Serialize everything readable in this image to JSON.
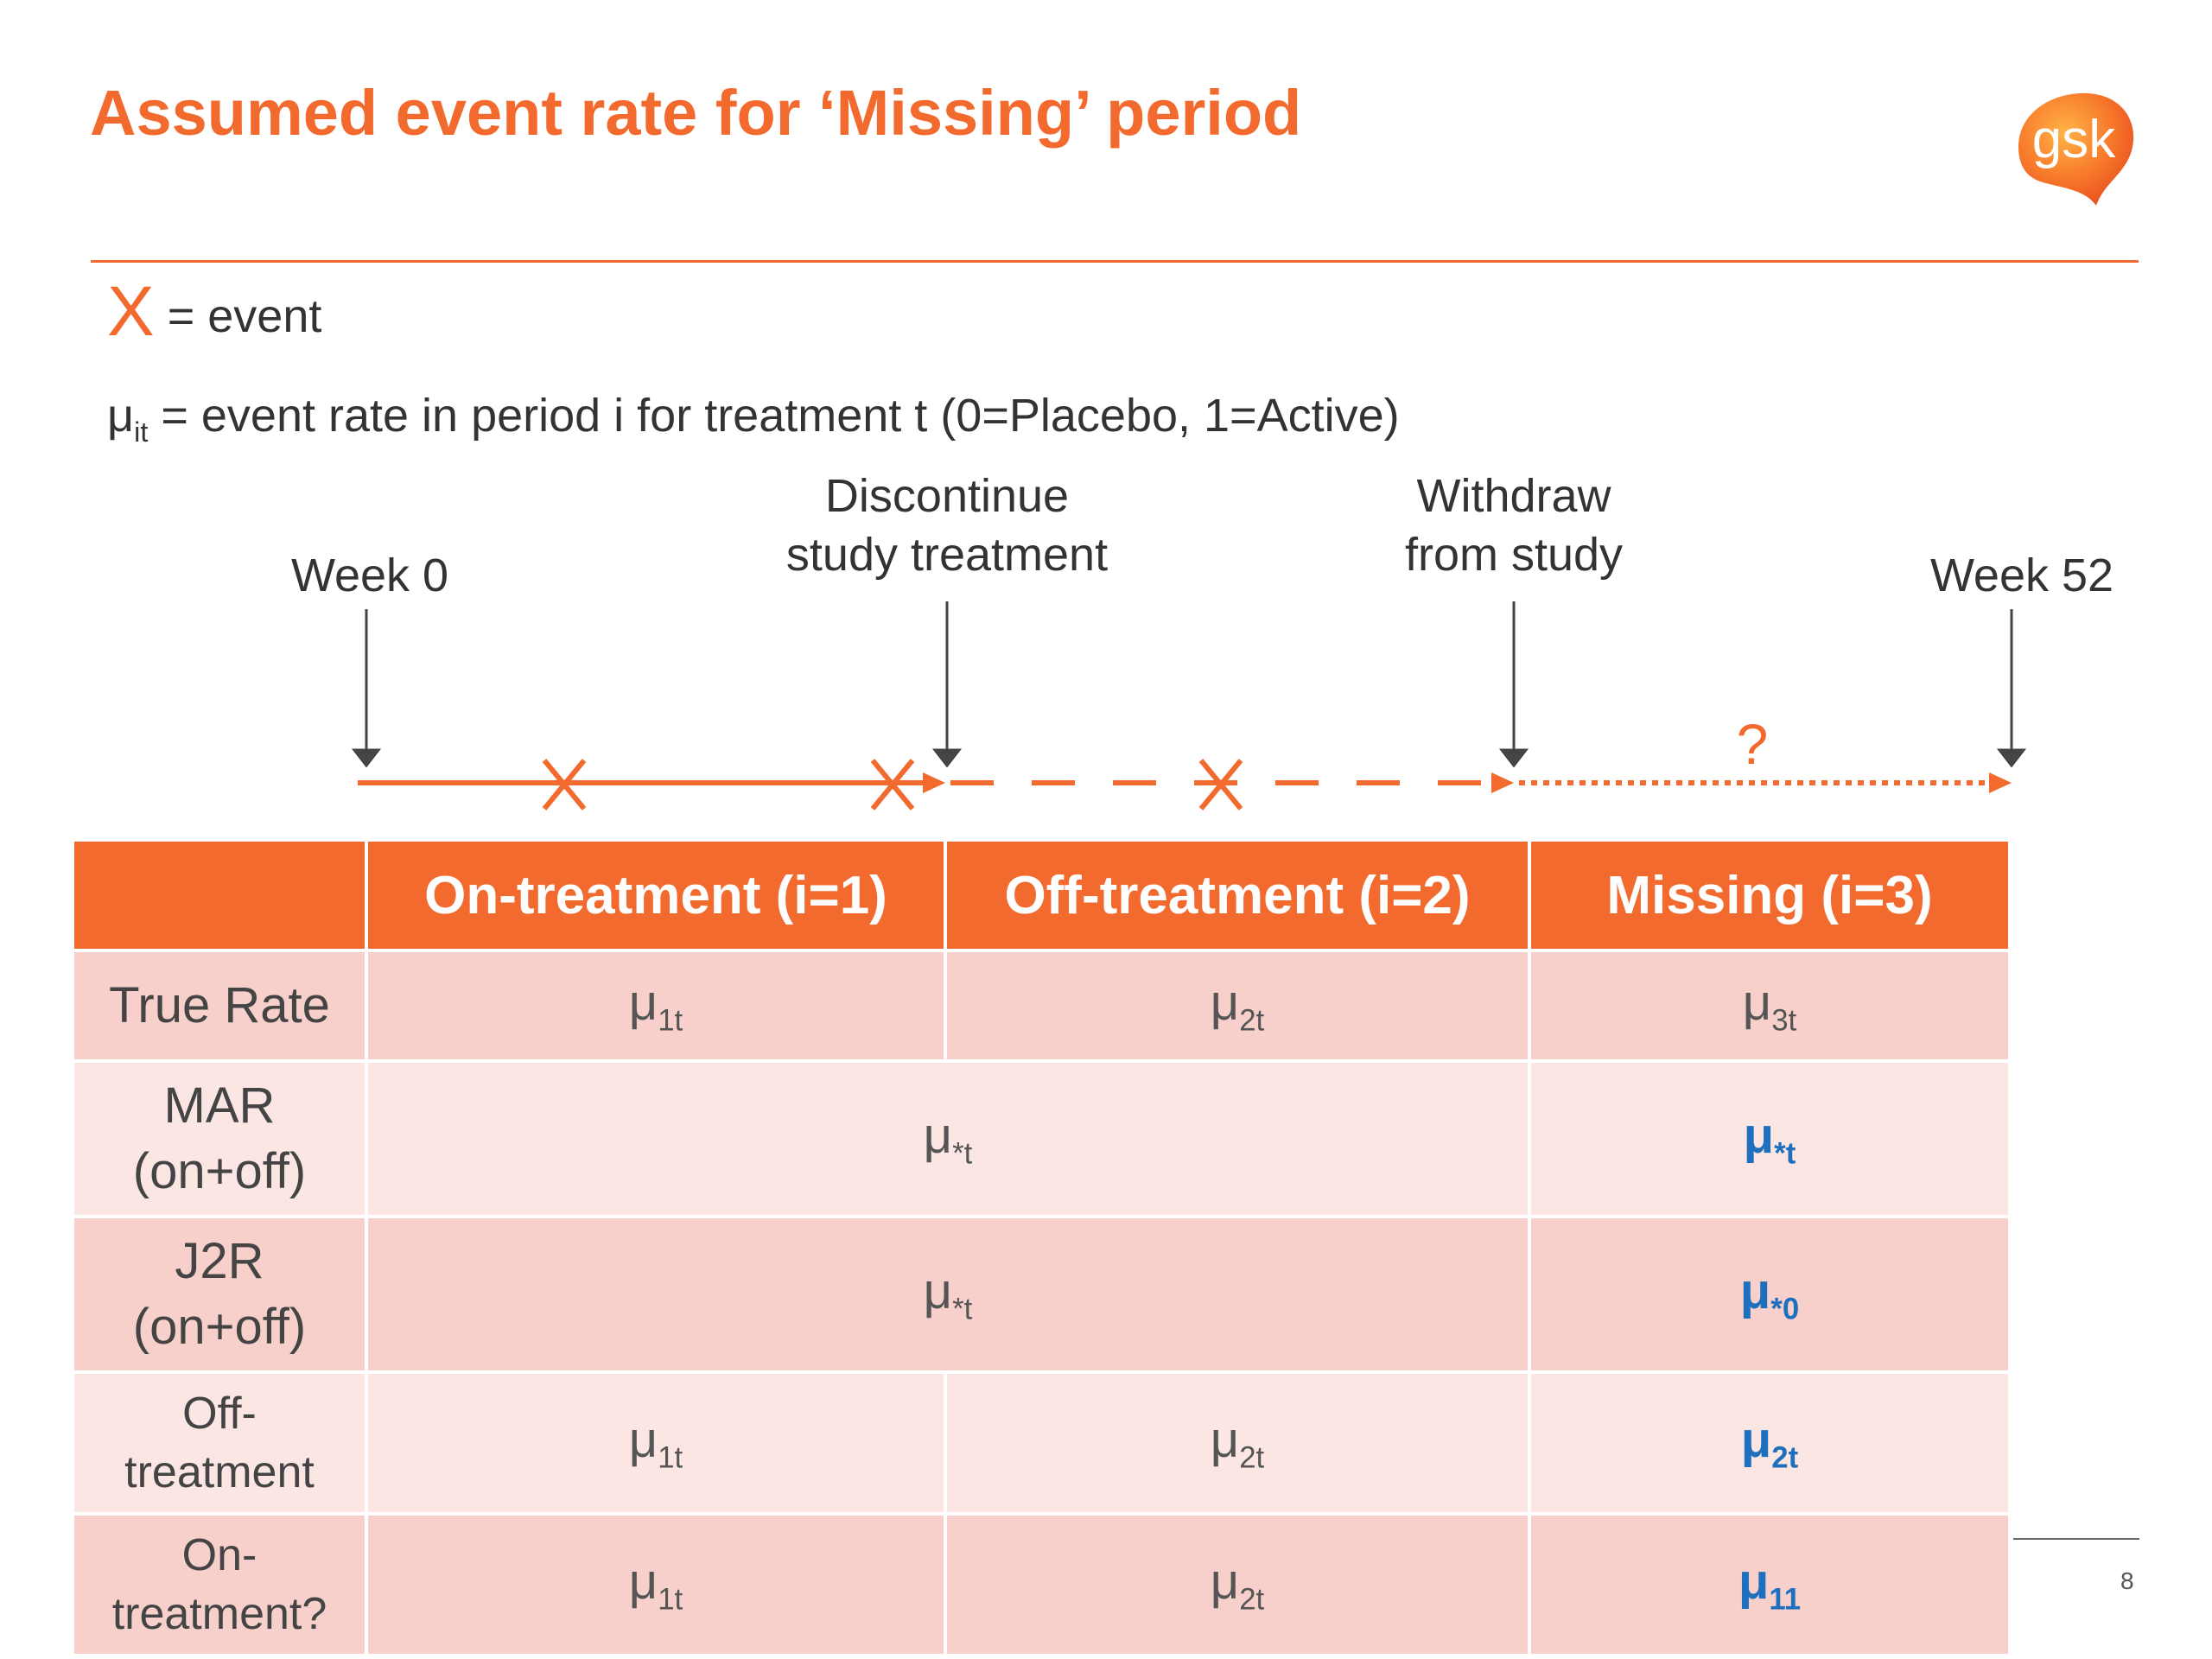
{
  "title": "Assumed event rate for ‘Missing’ period",
  "logo_text": "gsk",
  "legend": {
    "event_symbol": "X",
    "event_text": "= event",
    "rate_symbol": "μ",
    "rate_subscript": "it",
    "rate_text": "= event rate in period i for treatment t (0=Placebo, 1=Active)"
  },
  "timeline": {
    "week0": "Week 0",
    "discontinue_line1": "Discontinue",
    "discontinue_line2": "study treatment",
    "withdraw_line1": "Withdraw",
    "withdraw_line2": "from study",
    "week52": "Week 52",
    "unknown_mark": "?"
  },
  "table": {
    "headers": [
      "",
      "On-treatment (i=1)",
      "Off-treatment (i=2)",
      "Missing (i=3)"
    ],
    "rows": {
      "true_rate": {
        "label": "True Rate",
        "c1": "1t",
        "c2": "2t",
        "c3": "3t"
      },
      "mar": {
        "label1": "MAR",
        "label2": "(on+off)",
        "merged": "*t",
        "c3": "*t"
      },
      "j2r": {
        "label1": "J2R",
        "label2": "(on+off)",
        "merged": "*t",
        "c3": "*0"
      },
      "off": {
        "label1": "Off-",
        "label2": "treatment",
        "c1": "1t",
        "c2": "2t",
        "c3": "2t"
      },
      "on": {
        "label1": "On-",
        "label2": "treatment?",
        "c1": "1t",
        "c2": "2t",
        "c3": "11"
      }
    }
  },
  "colors": {
    "accent": "#f26a2e",
    "highlight": "#1f6fbf",
    "row_dark": "#f8d0cb",
    "row_light": "#fbe6e3"
  },
  "page_number": "8"
}
